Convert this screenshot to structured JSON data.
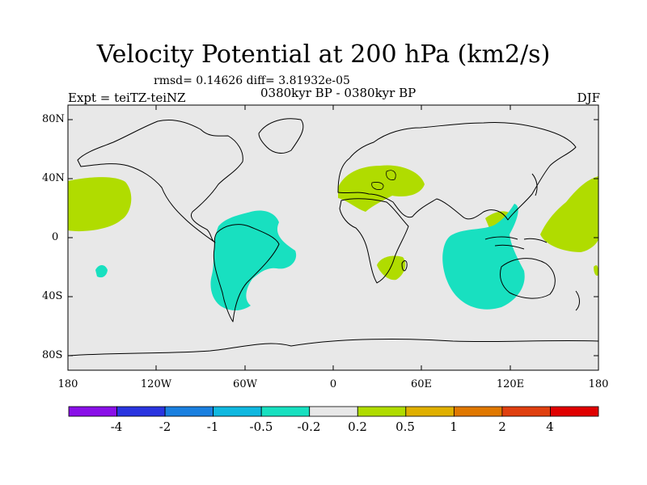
{
  "title": "Velocity Potential at 200 hPa (km2/s)",
  "stats": "rmsd= 0.14626 diff= 3.81932e-05",
  "experiment": "Expt = teiTZ-teiNZ",
  "period": "0380kyr BP - 0380kyr BP",
  "season": "DJF",
  "map": {
    "projection": "cylindrical equidistant",
    "lon_range": [
      -180,
      180
    ],
    "lat_range": [
      -90,
      90
    ],
    "ocean_color": "#e8e8e8",
    "coast_color": "#000000",
    "lon_labels": [
      "180",
      "120W",
      "60W",
      "0",
      "60E",
      "120E",
      "180"
    ],
    "lat_labels": [
      "80N",
      "40N",
      "0",
      "40S",
      "80S"
    ]
  },
  "colorbar": {
    "colors": [
      "#8a10e8",
      "#2a35e0",
      "#1a80e0",
      "#10b8e0",
      "#18e0c0",
      "#e8e8e8",
      "#b0dc00",
      "#e0b000",
      "#e07800",
      "#e04010",
      "#e00000"
    ],
    "labels": [
      "-4",
      "-2",
      "-1",
      "-0.5",
      "-0.2",
      "0.2",
      "0.5",
      "1",
      "2",
      "4"
    ]
  }
}
